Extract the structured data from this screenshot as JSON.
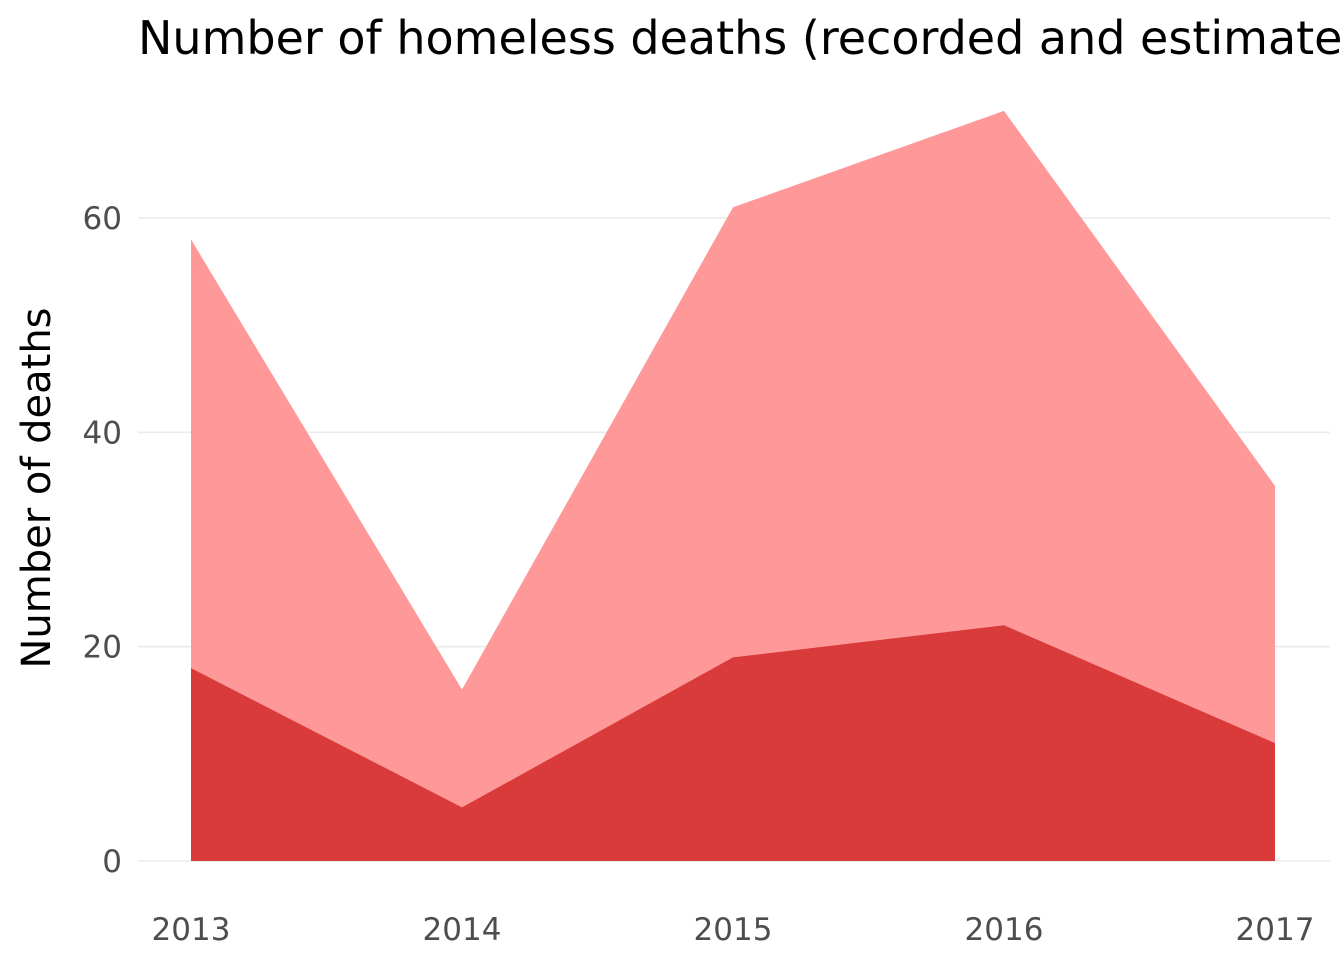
{
  "chart_data": {
    "type": "area",
    "title": "Number of homeless deaths (recorded and estimated)",
    "xlabel": "",
    "ylabel": "Number of deaths",
    "x": [
      2013,
      2014,
      2015,
      2016,
      2017
    ],
    "x_tick_labels": [
      "2013",
      "2014",
      "2015",
      "2016",
      "2017"
    ],
    "y_ticks": [
      0,
      20,
      40,
      60
    ],
    "y_tick_labels": [
      "0",
      "20",
      "40",
      "60"
    ],
    "ylim": [
      0,
      70
    ],
    "grid": true,
    "legend": "none",
    "series": [
      {
        "values": [
          58,
          16,
          61,
          70,
          35
        ],
        "color": "#ff9999"
      },
      {
        "values": [
          18,
          5,
          19,
          22,
          11
        ],
        "color": "#d93b3b"
      }
    ]
  }
}
